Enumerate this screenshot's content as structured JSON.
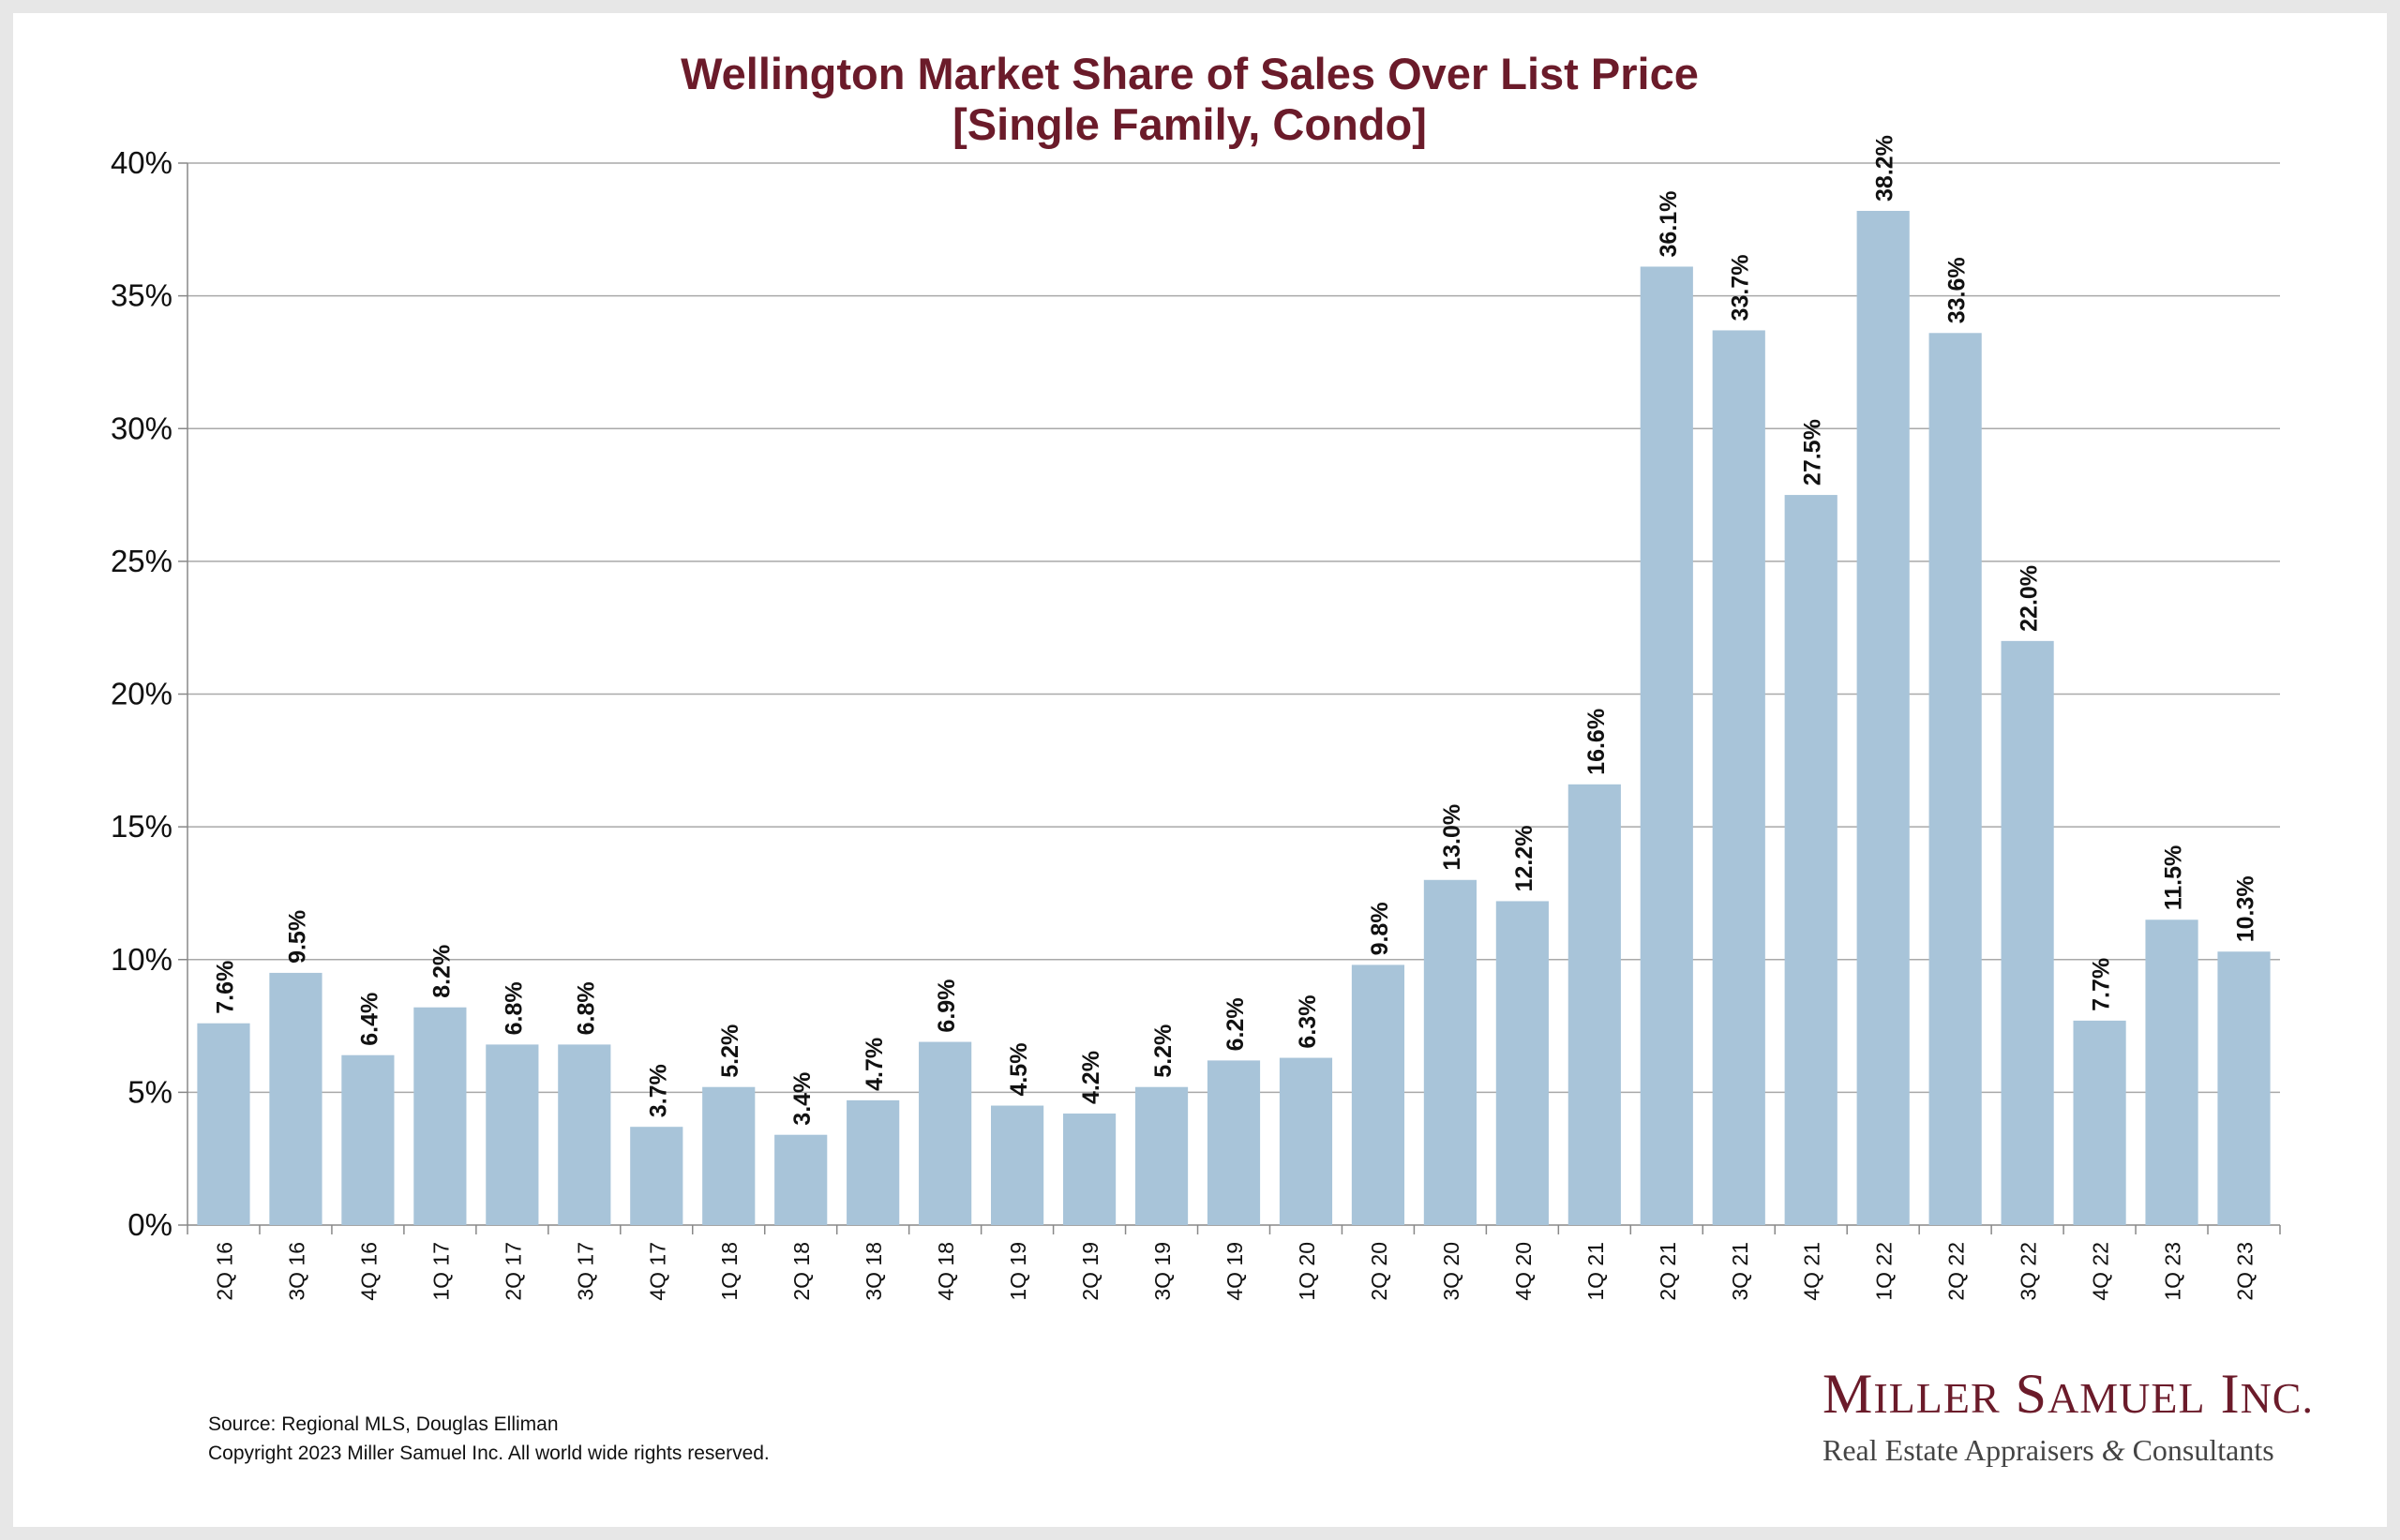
{
  "chart_data": {
    "type": "bar",
    "title": "Wellington Market Share of Sales Over List Price",
    "subtitle": "[Single Family, Condo]",
    "xlabel": "",
    "ylabel": "",
    "ylim": [
      0,
      40
    ],
    "y_ticks": [
      "0%",
      "5%",
      "10%",
      "15%",
      "20%",
      "25%",
      "30%",
      "35%",
      "40%"
    ],
    "grid": true,
    "bar_color": "#a8c4d9",
    "categories": [
      "2Q 16",
      "3Q 16",
      "4Q 16",
      "1Q 17",
      "2Q 17",
      "3Q 17",
      "4Q 17",
      "1Q 18",
      "2Q 18",
      "3Q 18",
      "4Q 18",
      "1Q 19",
      "2Q 19",
      "3Q 19",
      "4Q 19",
      "1Q 20",
      "2Q 20",
      "3Q 20",
      "4Q 20",
      "1Q 21",
      "2Q 21",
      "3Q 21",
      "4Q 21",
      "1Q 22",
      "2Q 22",
      "3Q 22",
      "4Q 22",
      "1Q 23",
      "2Q 23"
    ],
    "values": [
      7.6,
      9.5,
      6.4,
      8.2,
      6.8,
      6.8,
      3.7,
      5.2,
      3.4,
      4.7,
      6.9,
      4.5,
      4.2,
      5.2,
      6.2,
      6.3,
      9.8,
      13.0,
      12.2,
      16.6,
      36.1,
      33.7,
      27.5,
      38.2,
      33.6,
      22.0,
      7.7,
      11.5,
      10.3
    ],
    "data_labels": [
      "7.6%",
      "9.5%",
      "6.4%",
      "8.2%",
      "6.8%",
      "6.8%",
      "3.7%",
      "5.2%",
      "3.4%",
      "4.7%",
      "6.9%",
      "4.5%",
      "4.2%",
      "5.2%",
      "6.2%",
      "6.3%",
      "9.8%",
      "13.0%",
      "12.2%",
      "16.6%",
      "36.1%",
      "33.7%",
      "27.5%",
      "38.2%",
      "33.6%",
      "22.0%",
      "7.7%",
      "11.5%",
      "10.3%"
    ]
  },
  "footer": {
    "source": "Source: Regional MLS, Douglas Elliman",
    "copyright": "Copyright 2023 Miller Samuel Inc.  All world wide rights reserved."
  },
  "logo": {
    "name": "Miller Samuel Inc.",
    "tagline": "Real Estate Appraisers & Consultants",
    "color": "#6b1b2a"
  }
}
